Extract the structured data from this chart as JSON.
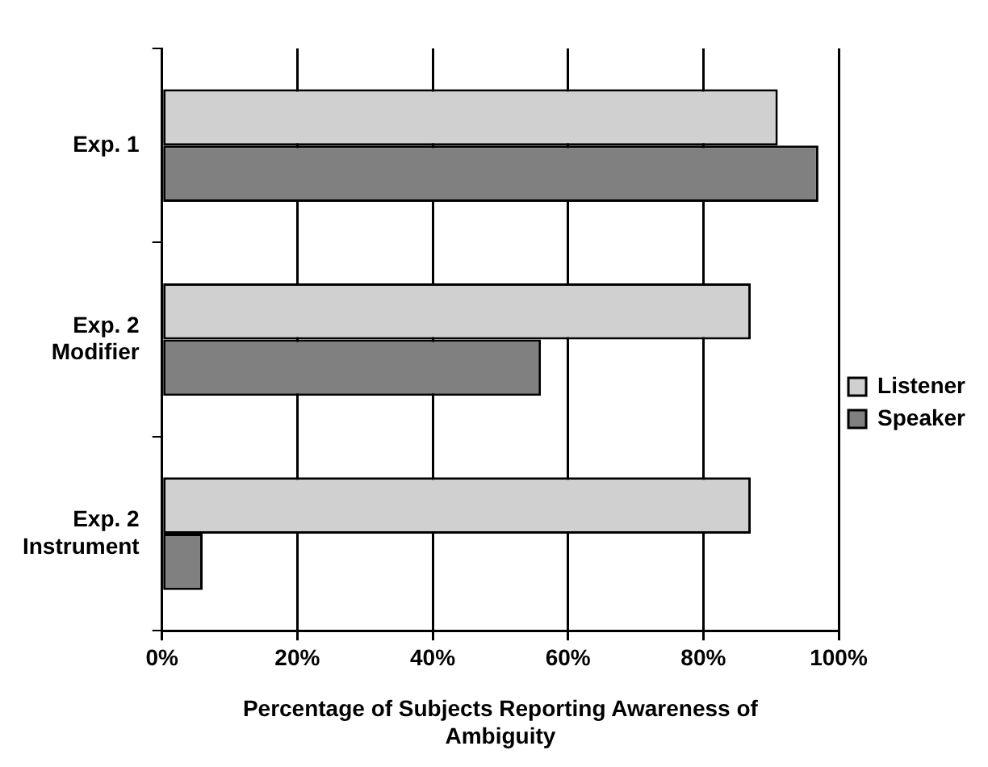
{
  "chart_data": {
    "type": "bar",
    "orientation": "horizontal",
    "categories": [
      "Exp. 1",
      "Exp. 2 Modifier",
      "Exp. 2 Instrument"
    ],
    "series": [
      {
        "name": "Listener",
        "color": "#d0d0d0",
        "values": [
          91,
          87,
          87
        ]
      },
      {
        "name": "Speaker",
        "color": "#808080",
        "values": [
          97,
          56,
          6
        ]
      }
    ],
    "xlim": [
      0,
      100
    ],
    "xticks": [
      {
        "value": 0,
        "label": "0%"
      },
      {
        "value": 20,
        "label": "20%"
      },
      {
        "value": 40,
        "label": "40%"
      },
      {
        "value": 60,
        "label": "60%"
      },
      {
        "value": 80,
        "label": "80%"
      },
      {
        "value": 100,
        "label": "100%"
      }
    ],
    "xlabel": "Percentage of Subjects Reporting Awareness of Ambiguity",
    "grid": "x",
    "legend": "right"
  }
}
